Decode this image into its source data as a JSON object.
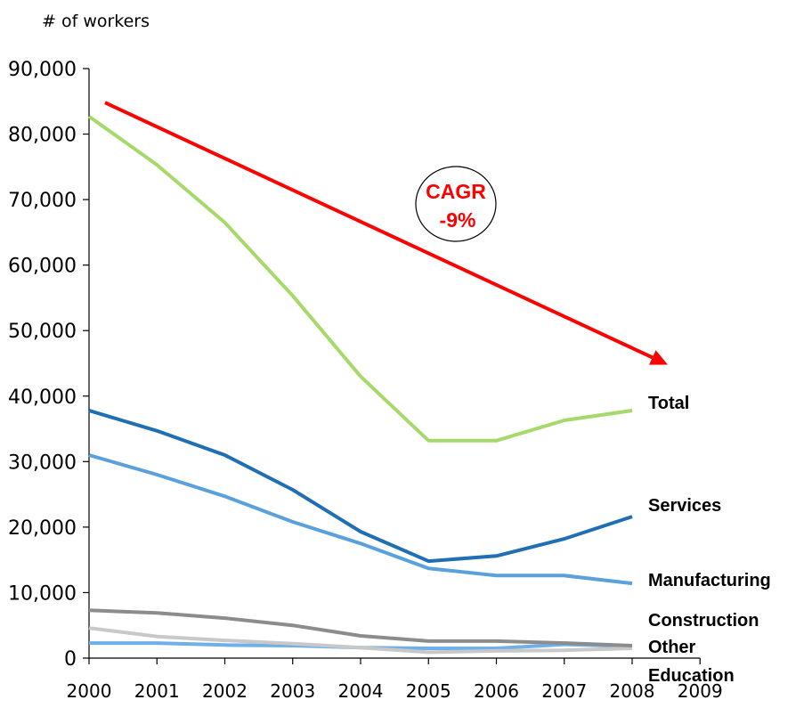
{
  "chart_data": {
    "type": "line",
    "title": "",
    "ylabel": "# of workers",
    "xlabel": "",
    "x": [
      "2000",
      "2001",
      "2002",
      "2003",
      "2004",
      "2005",
      "2006",
      "2007",
      "2008"
    ],
    "x_ticks": [
      "2000",
      "2001",
      "2002",
      "2003",
      "2004",
      "2005",
      "2006",
      "2007",
      "2008",
      "2009"
    ],
    "y_ticks": [
      "0",
      "10,000",
      "20,000",
      "30,000",
      "40,000",
      "50,000",
      "60,000",
      "70,000",
      "80,000",
      "90,000"
    ],
    "ylim": [
      0,
      90000
    ],
    "grid": false,
    "legend": "labels at right end of lines",
    "series": [
      {
        "name": "Total",
        "color": "#a6d96a",
        "values": [
          82700,
          75300,
          66500,
          55300,
          43000,
          33200,
          33200,
          36300,
          37800
        ]
      },
      {
        "name": "Services",
        "color": "#1f6fb2",
        "values": [
          37800,
          34700,
          31000,
          25700,
          19300,
          14800,
          15600,
          18200,
          21600
        ]
      },
      {
        "name": "Manufacturing",
        "color": "#5aa1dc",
        "values": [
          31000,
          28000,
          24700,
          20800,
          17500,
          13700,
          12600,
          12600,
          11400
        ]
      },
      {
        "name": "Construction",
        "color": "#8c8c8c",
        "values": [
          7300,
          6900,
          6100,
          5000,
          3400,
          2600,
          2600,
          2300,
          1900
        ]
      },
      {
        "name": "Other",
        "color": "#c8c8c8",
        "values": [
          4600,
          3300,
          2700,
          2200,
          1600,
          900,
          1100,
          1200,
          1500
        ]
      },
      {
        "name": "Education",
        "color": "#6fb0e8",
        "values": [
          2300,
          2300,
          2000,
          1900,
          1600,
          1500,
          1500,
          2100,
          1800
        ]
      }
    ],
    "annotations": {
      "cagr_label": "CAGR",
      "cagr_value": "-9%",
      "trend_color": "#ff0000",
      "trend_start": {
        "x": "2000",
        "y": 84800
      },
      "trend_end": {
        "x": "2008",
        "y": 44800
      }
    }
  }
}
